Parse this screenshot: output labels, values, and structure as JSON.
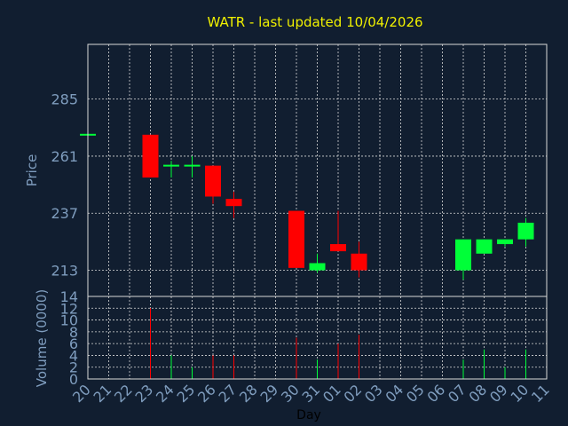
{
  "colors": {
    "background": "#111e30",
    "grid": "#d9d9d9",
    "up": "#00ff38",
    "down": "#ff0000",
    "title": "#f0f000",
    "axis_text": "#7f9dbe"
  },
  "chart_data": [
    {
      "type": "candlestick",
      "title": "WATR - last updated 10/04/2026",
      "ylabel": "Price",
      "ylim": [
        202,
        308
      ],
      "yticks": [
        213,
        237,
        261,
        285
      ],
      "grid": true,
      "candles": [
        {
          "day": "20",
          "open": 270,
          "close": 270,
          "high": 270,
          "low": 270
        },
        {
          "day": "23",
          "open": 270,
          "close": 252,
          "high": 270,
          "low": 252
        },
        {
          "day": "24",
          "open": 257,
          "close": 257,
          "high": 259,
          "low": 252
        },
        {
          "day": "25",
          "open": 257,
          "close": 257,
          "high": 261,
          "low": 252
        },
        {
          "day": "26",
          "open": 257,
          "close": 244,
          "high": 257,
          "low": 241
        },
        {
          "day": "27",
          "open": 243,
          "close": 240,
          "high": 246,
          "low": 235
        },
        {
          "day": "30",
          "open": 238,
          "close": 214,
          "high": 238,
          "low": 214
        },
        {
          "day": "31",
          "open": 213,
          "close": 216,
          "high": 220,
          "low": 212
        },
        {
          "day": "01",
          "open": 224,
          "close": 221,
          "high": 238,
          "low": 221
        },
        {
          "day": "02",
          "open": 220,
          "close": 213,
          "high": 225,
          "low": 210
        },
        {
          "day": "07",
          "open": 213,
          "close": 226,
          "high": 226,
          "low": 209
        },
        {
          "day": "08",
          "open": 220,
          "close": 226,
          "high": 226,
          "low": 220
        },
        {
          "day": "09",
          "open": 224,
          "close": 226,
          "high": 226,
          "low": 223
        },
        {
          "day": "10",
          "open": 226,
          "close": 233,
          "high": 235,
          "low": 223
        }
      ]
    },
    {
      "type": "bar",
      "ylabel": "Volume (0000)",
      "xlabel": "Day",
      "ylim": [
        0,
        14
      ],
      "yticks": [
        0,
        2,
        4,
        6,
        8,
        10,
        12,
        14
      ],
      "grid": true,
      "categories": [
        "20",
        "21",
        "22",
        "23",
        "24",
        "25",
        "26",
        "27",
        "28",
        "29",
        "30",
        "31",
        "01",
        "02",
        "03",
        "04",
        "05",
        "06",
        "07",
        "08",
        "09",
        "10",
        "11"
      ],
      "values": [
        0,
        0,
        0,
        12,
        4,
        2,
        4,
        4,
        0,
        0,
        7,
        3.3,
        6,
        7.5,
        0,
        0,
        0,
        0,
        3.3,
        5,
        2,
        5,
        0
      ],
      "direction": [
        "",
        "",
        "",
        "down",
        "up",
        "up",
        "down",
        "down",
        "",
        "",
        "down",
        "up",
        "down",
        "down",
        "",
        "",
        "",
        "",
        "up",
        "up",
        "up",
        "up",
        ""
      ]
    }
  ]
}
